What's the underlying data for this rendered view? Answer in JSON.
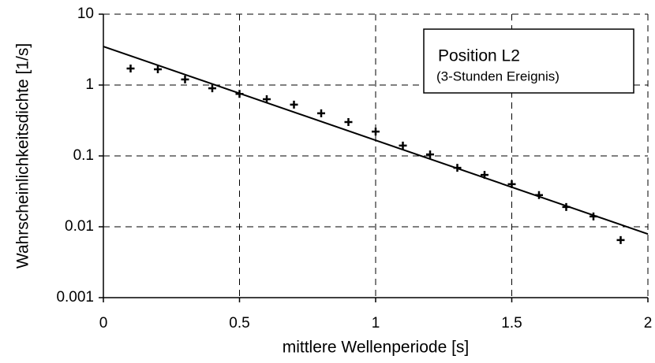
{
  "chart_data": {
    "type": "scatter",
    "xlabel": "mittlere Wellenperiode  [s]",
    "ylabel": "Wahrscheinlichkeitsdichte [1/s]",
    "annotations": [
      "Position L2",
      "(3-Stunden Ereignis)"
    ],
    "xlim": [
      0,
      2
    ],
    "xticks": [
      0,
      0.5,
      1,
      1.5,
      2
    ],
    "ylim": [
      0.001,
      10
    ],
    "yticks": [
      0.001,
      0.01,
      0.1,
      1,
      10
    ],
    "ylog": true,
    "grid": true,
    "series": [
      {
        "type": "scatter",
        "marker": "+",
        "color": "#000000",
        "x": [
          0.1,
          0.2,
          0.3,
          0.4,
          0.5,
          0.6,
          0.7,
          0.8,
          0.9,
          1.0,
          1.1,
          1.2,
          1.3,
          1.4,
          1.5,
          1.6,
          1.7,
          1.8,
          1.9
        ],
        "values": [
          1.71,
          1.67,
          1.2,
          0.9,
          0.75,
          0.63,
          0.53,
          0.4,
          0.3,
          0.22,
          0.14,
          0.105,
          0.068,
          0.054,
          0.04,
          0.028,
          0.019,
          0.014,
          0.0065
        ]
      },
      {
        "type": "line",
        "color": "#000000",
        "x": [
          0,
          2
        ],
        "values": [
          3.5,
          0.0079
        ]
      }
    ]
  }
}
